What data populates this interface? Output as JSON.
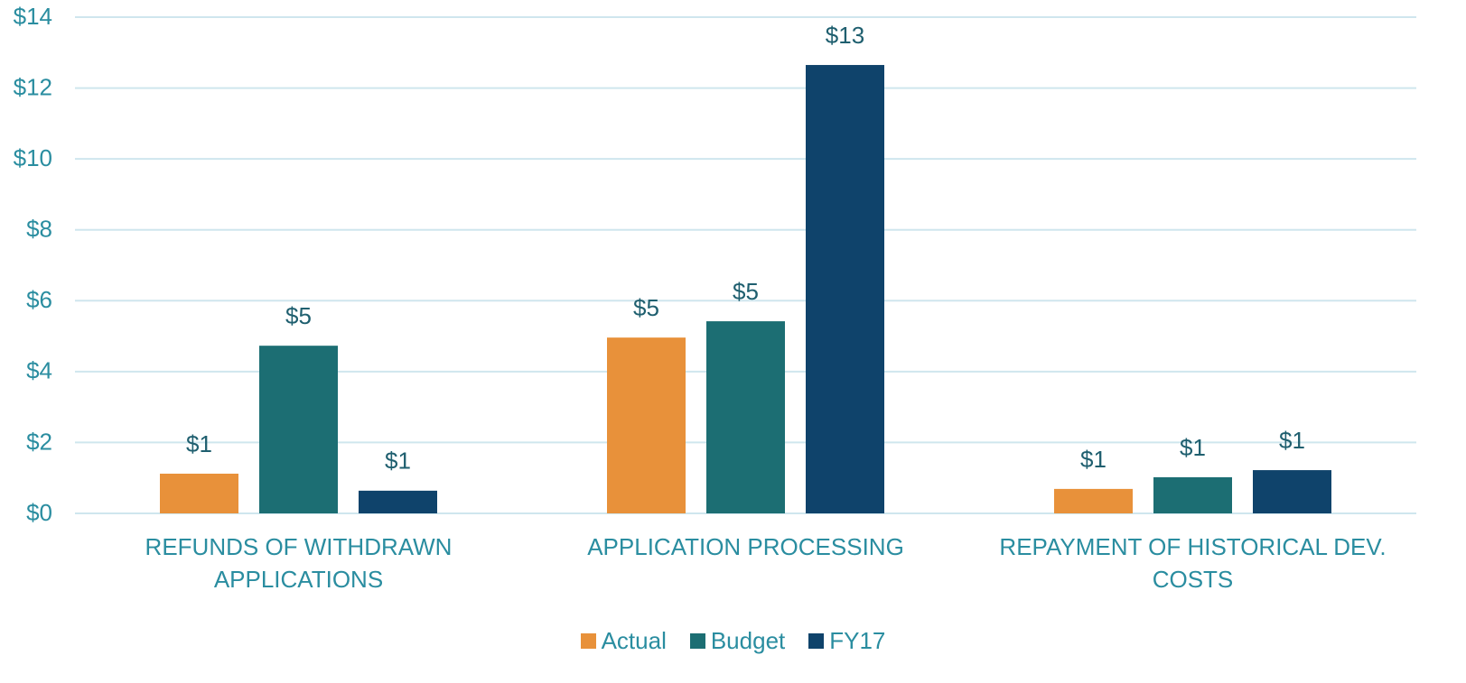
{
  "chart_data": {
    "type": "bar",
    "categories": [
      "REFUNDS OF WITHDRAWN APPLICATIONS",
      "APPLICATION PROCESSING",
      "REPAYMENT OF HISTORICAL DEV. COSTS"
    ],
    "series": [
      {
        "name": "Actual",
        "color": "#e8913a",
        "values": [
          1.12,
          4.96,
          0.69
        ],
        "value_labels": [
          "$1",
          "$5",
          "$1"
        ]
      },
      {
        "name": "Budget",
        "color": "#1c6e73",
        "values": [
          4.73,
          5.42,
          1.02
        ],
        "value_labels": [
          "$5",
          "$5",
          "$1"
        ]
      },
      {
        "name": "FY17",
        "color": "#0f436b",
        "values": [
          0.64,
          12.65,
          1.22
        ],
        "value_labels": [
          "$1",
          "$13",
          "$1"
        ]
      }
    ],
    "ylim": [
      0,
      14
    ],
    "yticks": [
      {
        "value": 0,
        "label": "$0"
      },
      {
        "value": 2,
        "label": "$2"
      },
      {
        "value": 4,
        "label": "$4"
      },
      {
        "value": 6,
        "label": "$6"
      },
      {
        "value": 8,
        "label": "$8"
      },
      {
        "value": 10,
        "label": "$10"
      },
      {
        "value": 12,
        "label": "$12"
      },
      {
        "value": 14,
        "label": "$14"
      }
    ],
    "grid": true,
    "legend": "bottom"
  }
}
